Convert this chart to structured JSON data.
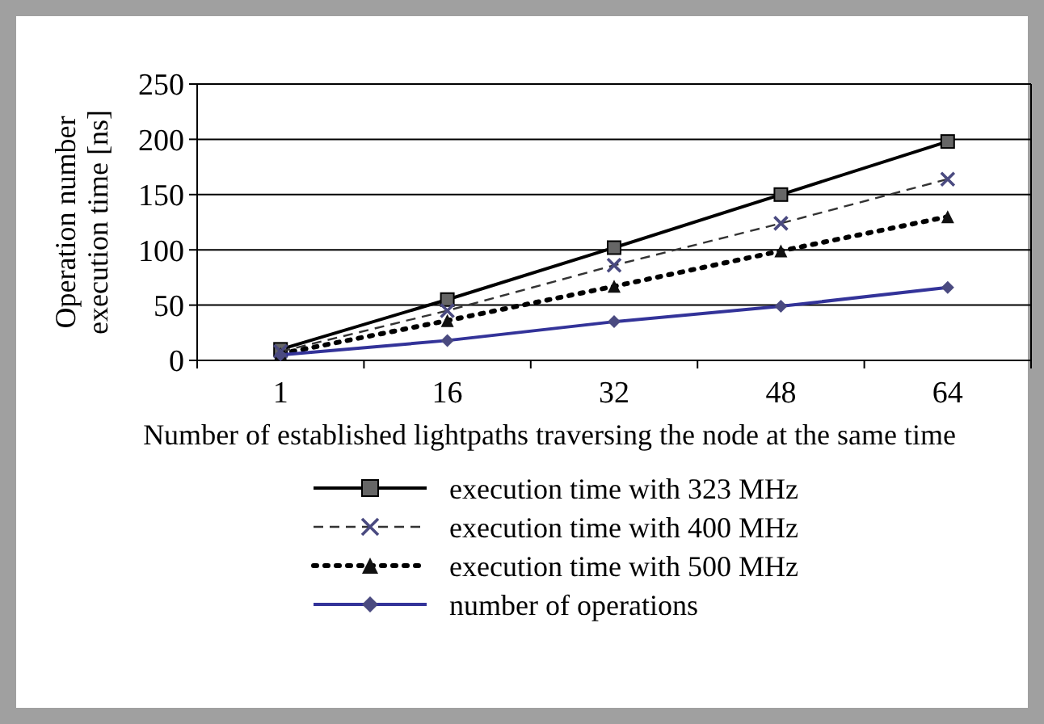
{
  "chart_data": {
    "type": "line",
    "xlabel": "Number of established lightpaths traversing the node at the same time",
    "ylabel": "Operation number execution time [ns]",
    "categories": [
      "1",
      "16",
      "32",
      "48",
      "64"
    ],
    "ylim": [
      0,
      250
    ],
    "yticks": [
      0,
      50,
      100,
      150,
      200,
      250
    ],
    "grid": "y",
    "legend": "bottom",
    "series": [
      {
        "name": "execution time with 323 MHz",
        "color": "#000000",
        "marker": "square",
        "line_style": "solid",
        "values": [
          10,
          55,
          102,
          150,
          198
        ]
      },
      {
        "name": "execution time with 400 MHz",
        "color": "#333333",
        "marker": "cross",
        "line_style": "dashed",
        "values": [
          8,
          45,
          86,
          124,
          164
        ]
      },
      {
        "name": "execution time with 500 MHz",
        "color": "#000000",
        "marker": "triangle",
        "line_style": "dotted",
        "values": [
          6,
          36,
          67,
          99,
          130
        ]
      },
      {
        "name": "number of operations",
        "color": "#333399",
        "marker": "diamond",
        "line_style": "solid",
        "values": [
          5,
          18,
          35,
          49,
          66
        ]
      }
    ]
  }
}
